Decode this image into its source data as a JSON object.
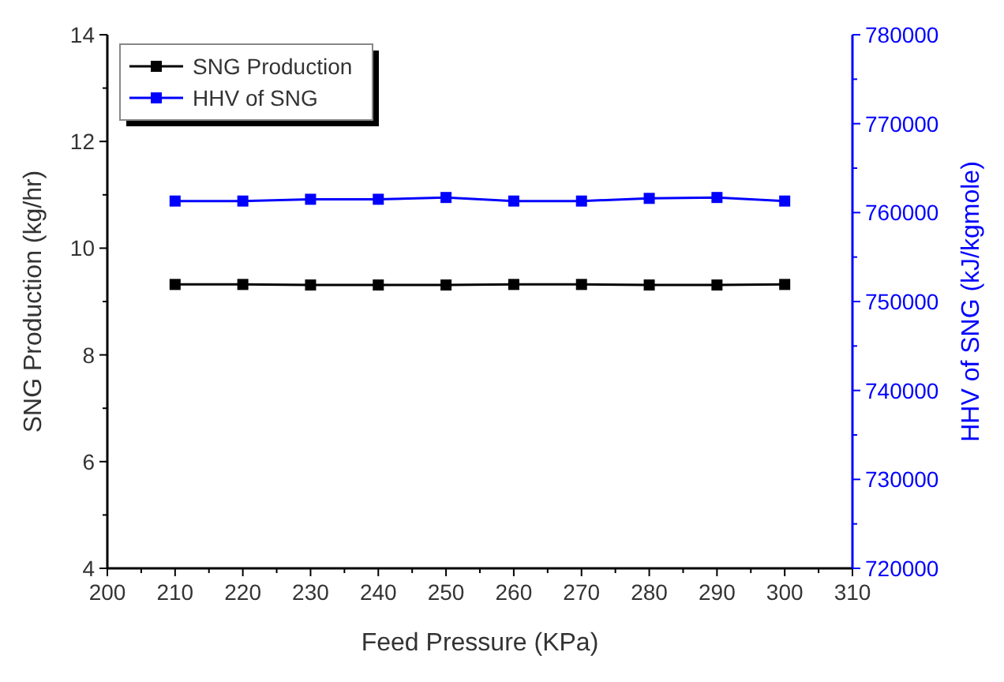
{
  "chart_data": {
    "type": "line",
    "xlabel": "Feed Pressure (KPa)",
    "ylabel": "SNG Production (kg/hr)",
    "y2label": "HHV of SNG (kJ/kgmole)",
    "x": [
      210,
      220,
      230,
      240,
      250,
      260,
      270,
      280,
      290,
      300
    ],
    "xlim": [
      200,
      310
    ],
    "xticks": [
      200,
      210,
      220,
      230,
      240,
      250,
      260,
      270,
      280,
      290,
      300,
      310
    ],
    "ylim": [
      4,
      14
    ],
    "yticks": [
      4,
      6,
      8,
      10,
      12,
      14
    ],
    "y2lim": [
      720000,
      780000
    ],
    "y2ticks": [
      720000,
      730000,
      740000,
      750000,
      760000,
      770000,
      780000
    ],
    "series": [
      {
        "name": "SNG Production",
        "color": "#000000",
        "values": [
          9.32,
          9.32,
          9.31,
          9.31,
          9.31,
          9.32,
          9.32,
          9.31,
          9.31,
          9.32
        ]
      },
      {
        "name": "HHV of SNG",
        "color": "#0000ff",
        "axis": "y2",
        "values": [
          761300,
          761300,
          761500,
          761500,
          761700,
          761300,
          761300,
          761600,
          761700,
          761300
        ]
      }
    ],
    "marker": "square",
    "legend": "top left",
    "grid": false
  }
}
